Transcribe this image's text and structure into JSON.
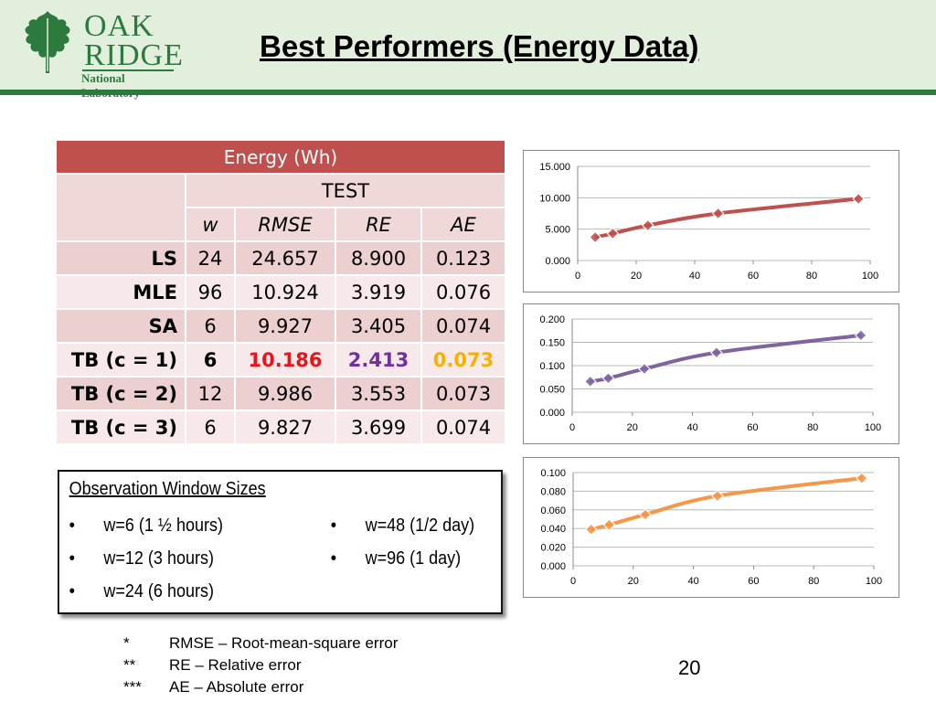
{
  "header": {
    "title": "Best Performers (Energy Data)",
    "logo": {
      "line1": "OAK",
      "line2": "RIDGE",
      "line3": "National Laboratory",
      "icon": "oak-leaf-icon",
      "color": "#2d7a3e"
    }
  },
  "table": {
    "caption": "Energy (Wh)",
    "group_header": "TEST",
    "columns": [
      "w",
      "RMSE",
      "RE",
      "AE"
    ],
    "rows": [
      {
        "label": "LS",
        "w": "24",
        "rmse": "24.657",
        "re": "8.900",
        "ae": "0.123"
      },
      {
        "label": "MLE",
        "w": "96",
        "rmse": "10.924",
        "re": "3.919",
        "ae": "0.076"
      },
      {
        "label": "SA",
        "w": "6",
        "rmse": "9.927",
        "re": "3.405",
        "ae": "0.074"
      },
      {
        "label": "TB (c = 1)",
        "w": "6",
        "rmse": "10.186",
        "re": "2.413",
        "ae": "0.073"
      },
      {
        "label": "TB (c = 2)",
        "w": "12",
        "rmse": "9.986",
        "re": "3.553",
        "ae": "0.073"
      },
      {
        "label": "TB (c = 3)",
        "w": "6",
        "rmse": "9.827",
        "re": "3.699",
        "ae": "0.074"
      }
    ],
    "colors": {
      "header": "#c0504d",
      "rmse_best": "#e8141a",
      "re_best": "#7030a0",
      "ae_best": "#f5b000"
    }
  },
  "observation": {
    "title": "Observation Window Sizes",
    "bullet": "•",
    "items": [
      "w=6 (1 ½ hours)",
      "w=12 (3 hours)",
      "w=24 (6 hours)",
      "w=48 (1/2 day)",
      "w=96 (1 day)"
    ]
  },
  "chart_data": [
    {
      "type": "line",
      "x": [
        6,
        12,
        24,
        48,
        96
      ],
      "series": [
        {
          "values": [
            3.699,
            4.3,
            5.6,
            7.5,
            9.827
          ],
          "color": "#c0504d"
        }
      ],
      "xlim": [
        0,
        100
      ],
      "ylim": [
        0,
        15
      ],
      "xticks": [
        "0",
        "20",
        "40",
        "60",
        "80",
        "100"
      ],
      "yticks": [
        "0.000",
        "5.000",
        "10.000",
        "15.000"
      ],
      "grid": true
    },
    {
      "type": "line",
      "x": [
        6,
        12,
        24,
        48,
        96
      ],
      "series": [
        {
          "values": [
            0.066,
            0.073,
            0.093,
            0.128,
            0.165
          ],
          "color": "#8064a2"
        }
      ],
      "xlim": [
        0,
        100
      ],
      "ylim": [
        0,
        0.2
      ],
      "xticks": [
        "0",
        "20",
        "40",
        "60",
        "80",
        "100"
      ],
      "yticks": [
        "0.000",
        "0.050",
        "0.100",
        "0.150",
        "0.200"
      ],
      "grid": true
    },
    {
      "type": "line",
      "x": [
        6,
        12,
        24,
        48,
        96
      ],
      "series": [
        {
          "values": [
            0.039,
            0.044,
            0.055,
            0.075,
            0.094
          ],
          "color": "#f79646"
        }
      ],
      "xlim": [
        0,
        100
      ],
      "ylim": [
        0,
        0.1
      ],
      "xticks": [
        "0",
        "20",
        "40",
        "60",
        "80",
        "100"
      ],
      "yticks": [
        "0.000",
        "0.020",
        "0.040",
        "0.060",
        "0.080",
        "0.100"
      ],
      "grid": true
    }
  ],
  "footnotes": [
    {
      "mark": "*",
      "text": "RMSE – Root-mean-square error"
    },
    {
      "mark": "**",
      "text": "RE – Relative error"
    },
    {
      "mark": "***",
      "text": "AE – Absolute error"
    }
  ],
  "page_number": "20"
}
